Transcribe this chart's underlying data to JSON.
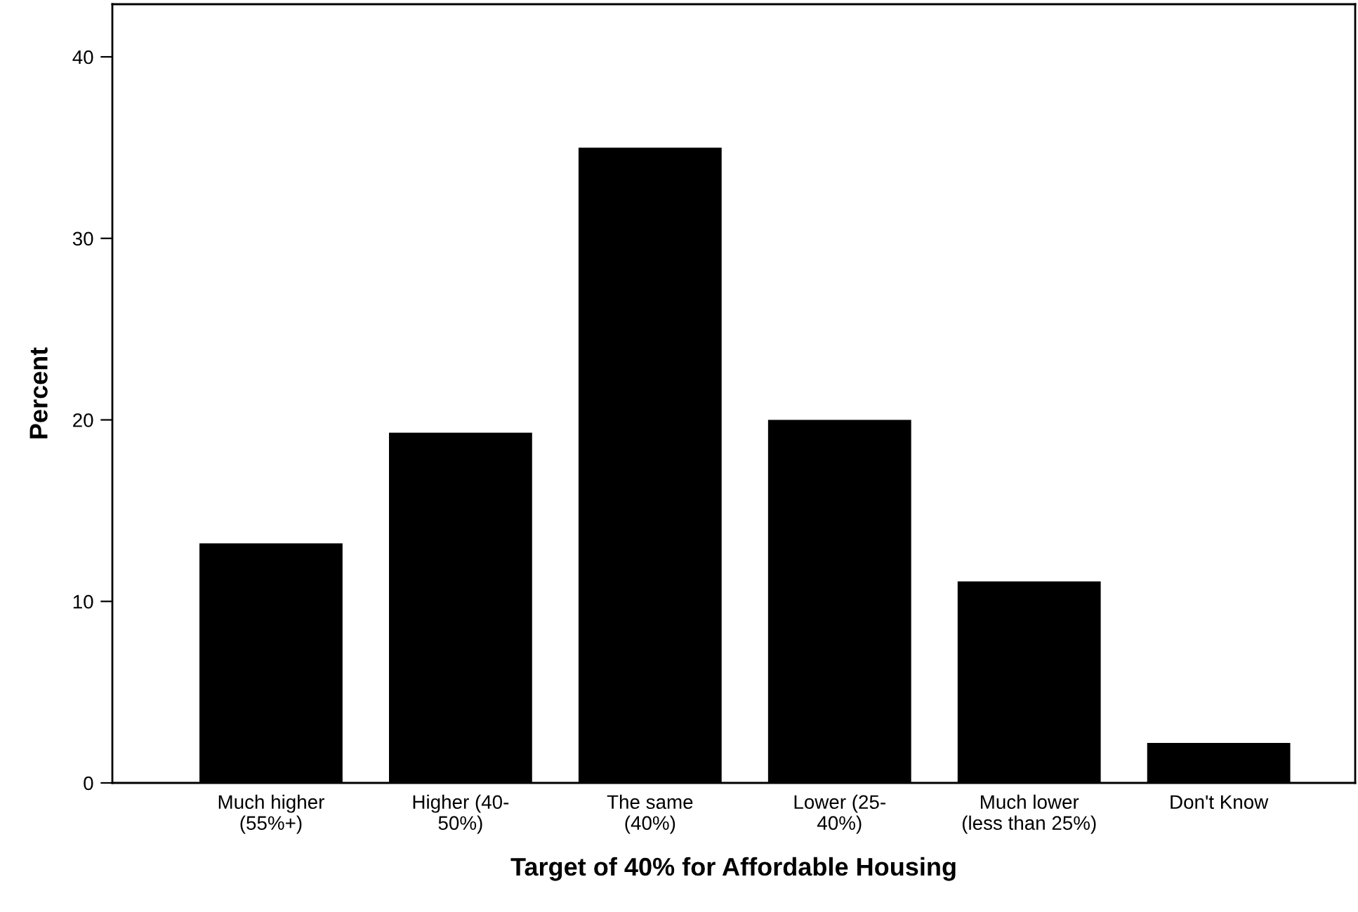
{
  "chart_data": {
    "type": "bar",
    "xlabel": "Target of 40% for Affordable Housing",
    "ylabel": "Percent",
    "categories": [
      "Much higher\n(55%+)",
      "Higher (40-\n50%)",
      "The same\n(40%)",
      "Lower (25-\n40%)",
      "Much lower\n(less than 25%)",
      "Don't Know"
    ],
    "values": [
      13.2,
      19.3,
      35.0,
      20.0,
      11.1,
      2.2
    ],
    "color": "#000000",
    "ylim": [
      0,
      42.9
    ],
    "yticks": [
      0,
      10,
      20,
      30,
      40
    ],
    "grid": false
  }
}
